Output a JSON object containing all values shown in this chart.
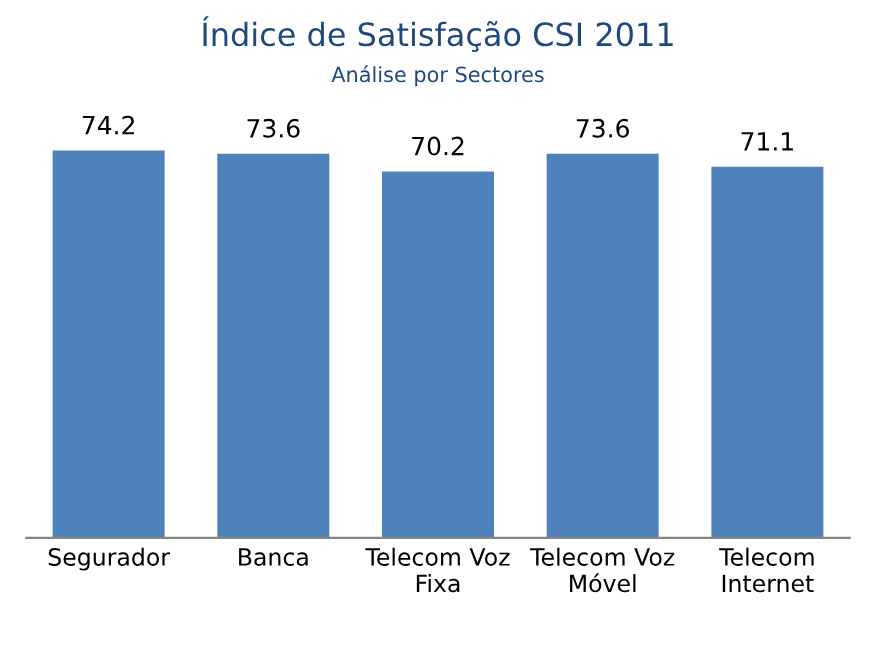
{
  "chart_data": {
    "type": "bar",
    "title": "Índice de Satisfação CSI 2011",
    "subtitle": "Análise por Sectores",
    "categories": [
      "Segurador",
      "Banca",
      "Telecom Voz\nFixa",
      "Telecom Voz\nMóvel",
      "Telecom\nInternet"
    ],
    "values": [
      74.2,
      73.6,
      70.2,
      73.6,
      71.1
    ],
    "color": "#4f81bd",
    "data_labels": true,
    "tick_labels": "x",
    "grid": false,
    "legend": false
  }
}
